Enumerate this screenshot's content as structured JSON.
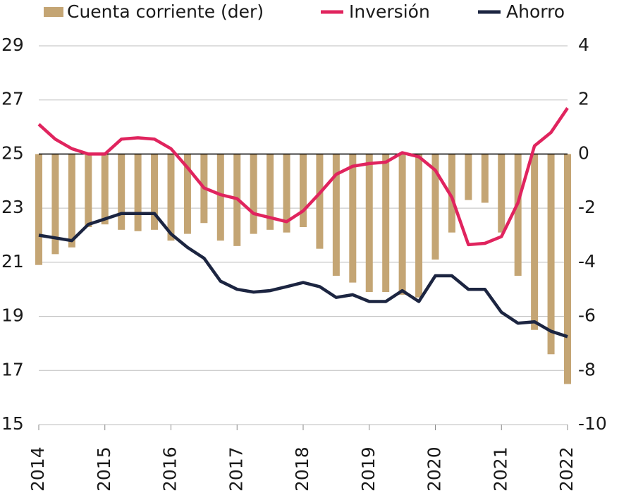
{
  "chart_data": {
    "type": "combo",
    "x": [
      2014,
      2014.25,
      2014.5,
      2014.75,
      2015,
      2015.25,
      2015.5,
      2015.75,
      2016,
      2016.25,
      2016.5,
      2016.75,
      2017,
      2017.25,
      2017.5,
      2017.75,
      2018,
      2018.25,
      2018.5,
      2018.75,
      2019,
      2019.25,
      2019.5,
      2019.75,
      2020,
      2020.25,
      2020.5,
      2020.75,
      2021,
      2021.25,
      2021.5,
      2021.75,
      2022
    ],
    "xlim": [
      2014,
      2022
    ],
    "xticks": [
      2014,
      2015,
      2016,
      2017,
      2018,
      2019,
      2020,
      2021,
      2022
    ],
    "ylim": [
      15,
      29
    ],
    "yticks": [
      15,
      17,
      19,
      21,
      23,
      25,
      27,
      29
    ],
    "y2lim": [
      -10,
      4
    ],
    "y2ticks": [
      -10,
      -8,
      -6,
      -4,
      -2,
      0,
      2,
      4
    ],
    "grid": true,
    "series": [
      {
        "name": "Cuenta corriente (der)",
        "type": "bar",
        "axis": "y2",
        "color": "#c4a574",
        "values": [
          -4.1,
          -3.7,
          -3.45,
          -2.7,
          -2.6,
          -2.8,
          -2.85,
          -2.8,
          -3.2,
          -2.95,
          -2.55,
          -3.2,
          -3.4,
          -2.95,
          -2.8,
          -2.9,
          -2.7,
          -3.5,
          -4.5,
          -4.75,
          -5.1,
          -5.1,
          -5.2,
          -5.3,
          -3.9,
          -2.9,
          -1.7,
          -1.8,
          -2.9,
          -4.5,
          -6.5,
          -7.4,
          -8.5
        ]
      },
      {
        "name": "Inversión",
        "type": "line",
        "color": "#e0245e",
        "values": [
          26.1,
          25.55,
          25.2,
          25.0,
          25.0,
          25.55,
          25.6,
          25.55,
          25.2,
          24.5,
          23.75,
          23.5,
          23.35,
          22.8,
          22.65,
          22.5,
          22.9,
          23.55,
          24.25,
          24.55,
          24.65,
          24.7,
          25.05,
          24.9,
          24.4,
          23.4,
          21.65,
          21.7,
          21.95,
          23.2,
          25.3,
          25.8,
          26.7
        ]
      },
      {
        "name": "Ahorro",
        "type": "line",
        "color": "#1c2541",
        "values": [
          22.0,
          21.9,
          21.8,
          22.4,
          22.6,
          22.8,
          22.8,
          22.8,
          22.05,
          21.55,
          21.15,
          20.3,
          20.0,
          19.9,
          19.95,
          20.1,
          20.25,
          20.1,
          19.7,
          19.8,
          19.55,
          19.55,
          19.95,
          19.55,
          20.5,
          20.5,
          20.0,
          20.0,
          19.15,
          18.75,
          18.8,
          18.45,
          18.25
        ]
      }
    ]
  }
}
